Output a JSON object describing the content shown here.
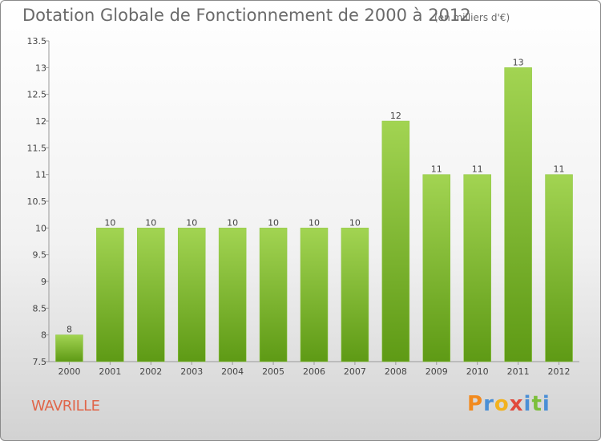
{
  "chart_data": {
    "type": "bar",
    "title": "Dotation Globale de Fonctionnement de 2000 à 2012",
    "subtitle": "(en milliers d'€)",
    "categories": [
      "2000",
      "2001",
      "2002",
      "2003",
      "2004",
      "2005",
      "2006",
      "2007",
      "2008",
      "2009",
      "2010",
      "2011",
      "2012"
    ],
    "values": [
      8,
      10,
      10,
      10,
      10,
      10,
      10,
      10,
      12,
      11,
      11,
      13,
      11
    ],
    "ylim": [
      7.5,
      13.5
    ],
    "yticks": [
      "7.5",
      "8",
      "8.5",
      "9",
      "9.5",
      "10",
      "10.5",
      "11",
      "11.5",
      "12",
      "12.5",
      "13",
      "13.5"
    ],
    "grid": false,
    "bar_color": "#7db934"
  },
  "commune": "WAVRILLE",
  "logo": {
    "letters": [
      "P",
      "r",
      "o",
      "x",
      "i",
      "t",
      "i"
    ],
    "colors": [
      "#f28a1e",
      "#4a8fd6",
      "#f2b21e",
      "#e14a3c",
      "#4a8fd6",
      "#7cbf3a",
      "#4a8fd6"
    ]
  }
}
